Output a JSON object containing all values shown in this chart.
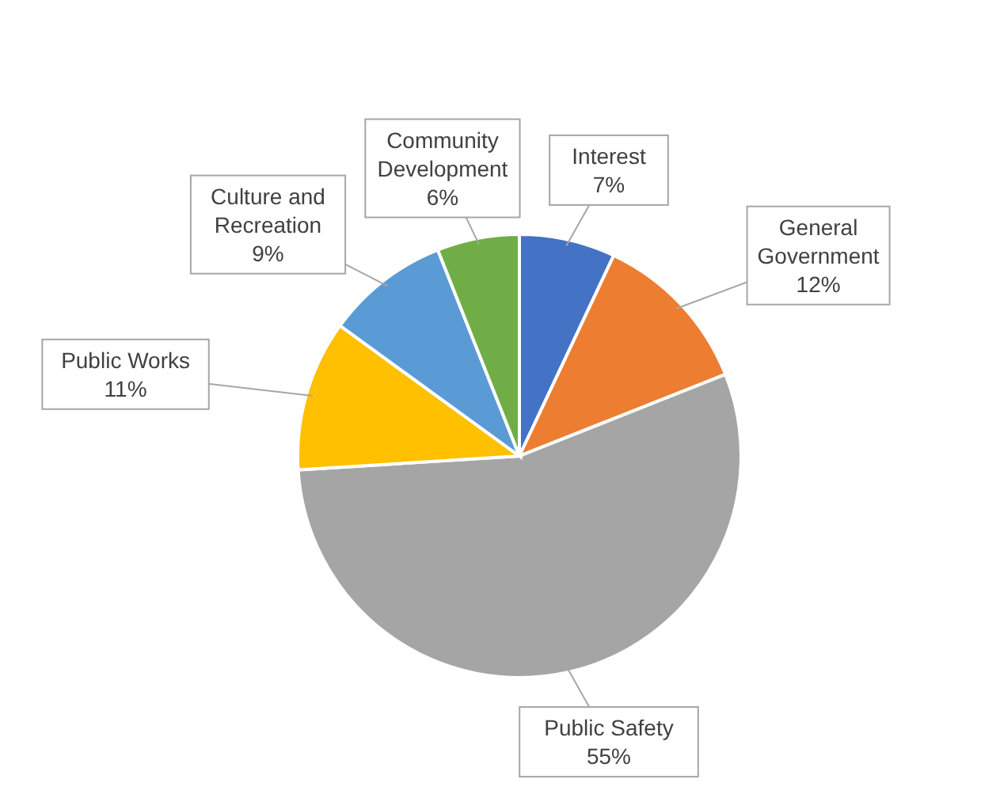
{
  "chart_data": {
    "type": "pie",
    "categories": [
      "Interest",
      "General Government",
      "Public Safety",
      "Public Works",
      "Culture and Recreation",
      "Community Development"
    ],
    "values": [
      7,
      12,
      55,
      11,
      9,
      6
    ],
    "colors": [
      "#4472c4",
      "#ed7d31",
      "#a5a5a5",
      "#ffc000",
      "#5b9bd5",
      "#70ad47"
    ],
    "value_labels": [
      "7%",
      "12%",
      "55%",
      "11%",
      "9%",
      "6%"
    ]
  }
}
